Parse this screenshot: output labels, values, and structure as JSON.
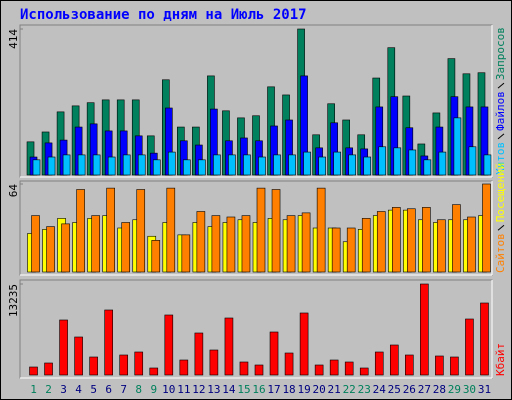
{
  "chart_data": [
    {
      "type": "bar",
      "title": "Использование по дням на Июль 2017",
      "ylim": [
        0,
        414
      ],
      "yticks": [
        414
      ],
      "series": [
        {
          "name": "Запросов",
          "color": "#00805c",
          "values": [
            94,
            122,
            179,
            196,
            205,
            213,
            213,
            213,
            111,
            270,
            136,
            136,
            281,
            182,
            162,
            168,
            250,
            227,
            414,
            114,
            202,
            156,
            114,
            275,
            361,
            224,
            88,
            176,
            330,
            287,
            290
          ]
        },
        {
          "name": "Файлов",
          "color": "#0000ff",
          "values": [
            51,
            91,
            99,
            136,
            145,
            125,
            125,
            111,
            62,
            190,
            97,
            85,
            187,
            97,
            105,
            97,
            139,
            156,
            281,
            77,
            148,
            77,
            74,
            193,
            222,
            134,
            54,
            136,
            222,
            193,
            193
          ]
        },
        {
          "name": "Хитов",
          "color": "#00c0ff",
          "values": [
            43,
            51,
            57,
            57,
            57,
            51,
            57,
            57,
            43,
            65,
            43,
            43,
            57,
            57,
            57,
            51,
            57,
            57,
            65,
            51,
            65,
            57,
            51,
            80,
            77,
            71,
            43,
            65,
            162,
            80,
            57
          ]
        }
      ]
    },
    {
      "type": "bar",
      "ylim": [
        0,
        64
      ],
      "yticks": [
        64
      ],
      "series": [
        {
          "name": "Посещений",
          "color": "#ffff00",
          "values": [
            28,
            31,
            39,
            36,
            39,
            41,
            32,
            38,
            26,
            36,
            27,
            36,
            33,
            36,
            38,
            36,
            39,
            38,
            41,
            32,
            32,
            22,
            31,
            41,
            45,
            45,
            38,
            36,
            38,
            38,
            41
          ]
        },
        {
          "name": "Сайтов",
          "color": "#ff8000",
          "values": [
            41,
            33,
            35,
            60,
            41,
            61,
            36,
            60,
            23,
            61,
            27,
            44,
            41,
            40,
            41,
            61,
            60,
            41,
            43,
            61,
            32,
            32,
            39,
            44,
            47,
            46,
            47,
            38,
            49,
            40,
            64
          ]
        }
      ]
    },
    {
      "type": "bar",
      "ylim": [
        0,
        13235
      ],
      "yticks": [
        13235
      ],
      "categories": [
        "1",
        "2",
        "3",
        "4",
        "5",
        "6",
        "7",
        "8",
        "9",
        "10",
        "11",
        "12",
        "13",
        "14",
        "15",
        "16",
        "17",
        "18",
        "19",
        "20",
        "21",
        "22",
        "23",
        "24",
        "25",
        "26",
        "27",
        "28",
        "29",
        "30",
        "31"
      ],
      "category_colors": [
        "#00805c",
        "#00805c",
        "#000080",
        "#000080",
        "#000080",
        "#000080",
        "#000080",
        "#00805c",
        "#00805c",
        "#000080",
        "#000080",
        "#000080",
        "#000080",
        "#000080",
        "#00805c",
        "#00805c",
        "#000080",
        "#000080",
        "#000080",
        "#000080",
        "#000080",
        "#00805c",
        "#00805c",
        "#000080",
        "#000080",
        "#000080",
        "#000080",
        "#000080",
        "#00805c",
        "#00805c",
        "#000080"
      ],
      "series": [
        {
          "name": "Кбайт",
          "color": "#ff0000",
          "values": [
            1163,
            1745,
            8000,
            5527,
            2618,
            9454,
            2909,
            3345,
            1018,
            8727,
            2181,
            6109,
            3636,
            8290,
            1891,
            1454,
            6254,
            3200,
            9018,
            1454,
            2181,
            1891,
            1018,
            3345,
            4363,
            2909,
            13235,
            2764,
            2618,
            8145,
            10472
          ]
        }
      ]
    }
  ]
}
